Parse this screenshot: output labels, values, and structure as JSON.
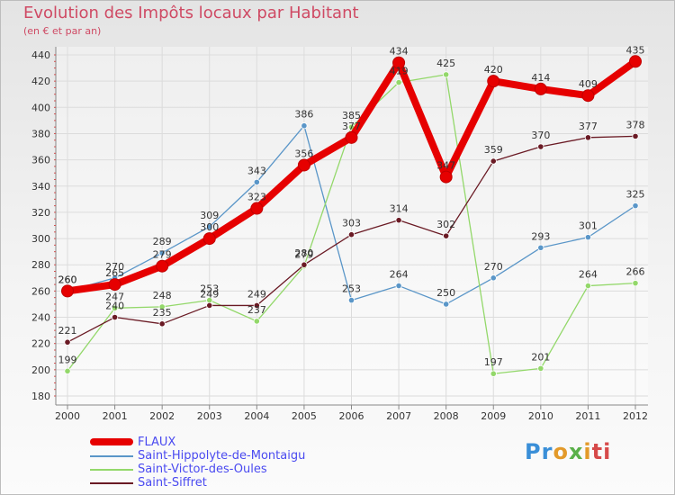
{
  "header": {
    "title": "Evolution des Impôts locaux par Habitant",
    "subtitle": "(en € et par an)"
  },
  "logo": {
    "text": "Proxiti",
    "colors": [
      "#3a8fd8",
      "#e39a2a",
      "#5ab04a",
      "#d64a4a"
    ]
  },
  "chart_data": {
    "type": "line",
    "title": "Evolution des Impôts locaux par Habitant",
    "subtitle": "(en € et par an)",
    "xlabel": "",
    "ylabel": "",
    "x": [
      "2000",
      "2001",
      "2002",
      "2003",
      "2004",
      "2005",
      "2006",
      "2007",
      "2008",
      "2009",
      "2010",
      "2011",
      "2012"
    ],
    "ylim": [
      180,
      440
    ],
    "yticks": [
      180,
      200,
      220,
      240,
      260,
      280,
      300,
      320,
      340,
      360,
      380,
      400,
      420,
      440
    ],
    "grid": true,
    "legend_position": "bottom-left",
    "series": [
      {
        "name": "FLAUX",
        "color": "#e60000",
        "values": [
          260,
          265,
          279,
          300,
          323,
          356,
          377,
          434,
          347,
          420,
          414,
          409,
          435
        ],
        "labels": [
          "260",
          "265",
          "279",
          "300",
          "323",
          "356",
          "377",
          "434",
          "347",
          "420",
          "414",
          "409",
          "435"
        ]
      },
      {
        "name": "Saint-Hippolyte-de-Montaigu",
        "color": "#5a96c8",
        "values": [
          260,
          270,
          289,
          309,
          343,
          386,
          253,
          264,
          250,
          270,
          293,
          301,
          325
        ],
        "labels": [
          "260",
          "270",
          "289",
          "309",
          "343",
          "386",
          "253",
          "264",
          "250",
          "270",
          "293",
          "301",
          "325"
        ]
      },
      {
        "name": "Saint-Victor-des-Oules",
        "color": "#93d86a",
        "values": [
          199,
          247,
          248,
          253,
          237,
          279,
          385,
          419,
          425,
          197,
          201,
          264,
          266
        ],
        "labels": [
          "199",
          "247",
          "248",
          "253",
          "237",
          "279",
          "385",
          "419",
          "425",
          "197",
          "201",
          "264",
          "266"
        ]
      },
      {
        "name": "Saint-Siffret",
        "color": "#6a1a24",
        "values": [
          221,
          240,
          235,
          249,
          249,
          280,
          303,
          314,
          302,
          359,
          370,
          377,
          378
        ],
        "labels": [
          "221",
          "240",
          "235",
          "249",
          "249",
          "280",
          "303",
          "314",
          "302",
          "359",
          "370",
          "377",
          "378"
        ]
      }
    ]
  }
}
